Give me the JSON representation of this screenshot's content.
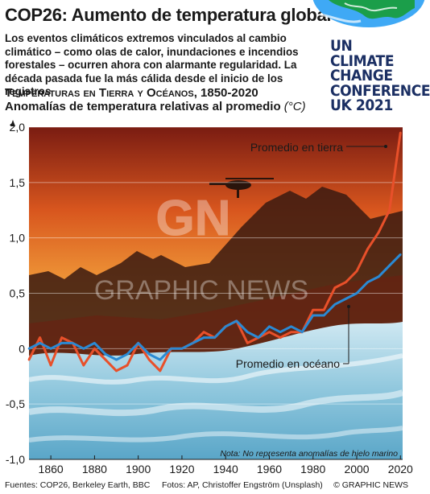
{
  "header": {
    "title": "COP26: Aumento de temperatura global",
    "intro": "Los eventos climáticos extremos vinculados al cambio climático – como olas de calor, inundaciones e incendios forestales – ocurren ahora con alarmante regularidad. La década pasada fue la más cálida desde el inicio de los registros",
    "logo_lines": [
      "UN CLIMATE",
      "CHANGE",
      "CONFERENCE",
      "UK 2021"
    ]
  },
  "chart_data": {
    "type": "line",
    "subtitle": "Temperaturas en Tierra y Océanos, 1850-2020",
    "ylabel": "Anomalías de temperatura relativas al promedio",
    "yunit": "(°C)",
    "xlim": [
      1850,
      2021
    ],
    "ylim": [
      -1.0,
      2.0
    ],
    "xticks": [
      1860,
      1880,
      1900,
      1920,
      1940,
      1960,
      1980,
      2000,
      2020
    ],
    "yticks": [
      {
        "value": 2.0,
        "label": "2,0"
      },
      {
        "value": 1.5,
        "label": "1,5"
      },
      {
        "value": 1.0,
        "label": "1,0"
      },
      {
        "value": 0.5,
        "label": "0,5"
      },
      {
        "value": 0,
        "label": "0"
      },
      {
        "value": -0.5,
        "label": "-0,5"
      },
      {
        "value": -1.0,
        "label": "-1,0"
      }
    ],
    "grid": true,
    "x": [
      1850,
      1855,
      1860,
      1865,
      1870,
      1875,
      1880,
      1885,
      1890,
      1895,
      1900,
      1905,
      1910,
      1915,
      1920,
      1925,
      1930,
      1935,
      1940,
      1945,
      1950,
      1955,
      1960,
      1965,
      1970,
      1975,
      1980,
      1985,
      1990,
      1995,
      2000,
      2005,
      2010,
      2015,
      2020
    ],
    "series": [
      {
        "name": "Promedio en tierra",
        "color": "#e8502a",
        "values": [
          -0.1,
          0.1,
          -0.15,
          0.1,
          0.05,
          -0.15,
          0.0,
          -0.1,
          -0.2,
          -0.15,
          0.05,
          -0.1,
          -0.2,
          0.0,
          0.0,
          0.05,
          0.15,
          0.1,
          0.2,
          0.25,
          0.05,
          0.1,
          0.15,
          0.1,
          0.15,
          0.15,
          0.35,
          0.35,
          0.55,
          0.6,
          0.7,
          0.9,
          1.05,
          1.25,
          1.95
        ]
      },
      {
        "name": "Promedio en océano",
        "color": "#2a8ad4",
        "values": [
          0.0,
          0.05,
          0.0,
          0.05,
          0.05,
          0.0,
          0.05,
          -0.05,
          -0.1,
          -0.05,
          0.05,
          -0.05,
          -0.1,
          0.0,
          0.0,
          0.05,
          0.1,
          0.1,
          0.2,
          0.25,
          0.15,
          0.1,
          0.2,
          0.15,
          0.2,
          0.15,
          0.3,
          0.3,
          0.4,
          0.45,
          0.5,
          0.6,
          0.65,
          0.75,
          0.85
        ]
      }
    ],
    "note": "Nota: No representa anomalías de hielo marino"
  },
  "footer": {
    "sources": "Fuentes: COP26, Berkeley Earth, BBC",
    "photos": "Fotos: AP, Christoffer Engström (Unsplash)",
    "credit": "© GRAPHIC NEWS"
  },
  "watermark": {
    "mark": "GN",
    "text": "GRAPHIC NEWS"
  }
}
